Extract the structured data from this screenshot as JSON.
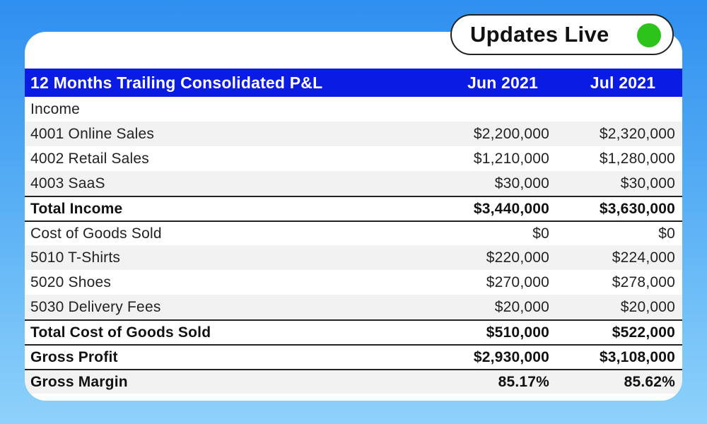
{
  "badge": {
    "label": "Updates Live",
    "status_color": "#2cc41b"
  },
  "table": {
    "title": "12 Months Trailing Consolidated P&L",
    "columns": [
      "Jun 2021",
      "Jul 2021"
    ],
    "rows": [
      {
        "label": "Income",
        "values": [
          "",
          ""
        ],
        "bold": false
      },
      {
        "label": "4001 Online Sales",
        "values": [
          "$2,200,000",
          "$2,320,000"
        ],
        "bold": false
      },
      {
        "label": "4002 Retail Sales",
        "values": [
          "$1,210,000",
          "$1,280,000"
        ],
        "bold": false
      },
      {
        "label": "4003 SaaS",
        "values": [
          "$30,000",
          "$30,000"
        ],
        "bold": false
      },
      {
        "label": "Total Income",
        "values": [
          "$3,440,000",
          "$3,630,000"
        ],
        "bold": true
      },
      {
        "label": "Cost of Goods Sold",
        "values": [
          "$0",
          "$0"
        ],
        "bold": false
      },
      {
        "label": "5010 T-Shirts",
        "values": [
          "$220,000",
          "$224,000"
        ],
        "bold": false
      },
      {
        "label": "5020 Shoes",
        "values": [
          "$270,000",
          "$278,000"
        ],
        "bold": false
      },
      {
        "label": "5030 Delivery Fees",
        "values": [
          "$20,000",
          "$20,000"
        ],
        "bold": false
      },
      {
        "label": "Total Cost of Goods Sold",
        "values": [
          "$510,000",
          "$522,000"
        ],
        "bold": true
      },
      {
        "label": "Gross Profit",
        "values": [
          "$2,930,000",
          "$3,108,000"
        ],
        "bold": true
      },
      {
        "label": "Gross Margin",
        "values": [
          "85.17%",
          "85.62%"
        ],
        "bold": true
      }
    ]
  },
  "colors": {
    "header_bg": "#0a1be3",
    "row_shade": "#f2f2f2",
    "background_top": "#2f8ff0",
    "background_bottom": "#8fd2fb"
  }
}
